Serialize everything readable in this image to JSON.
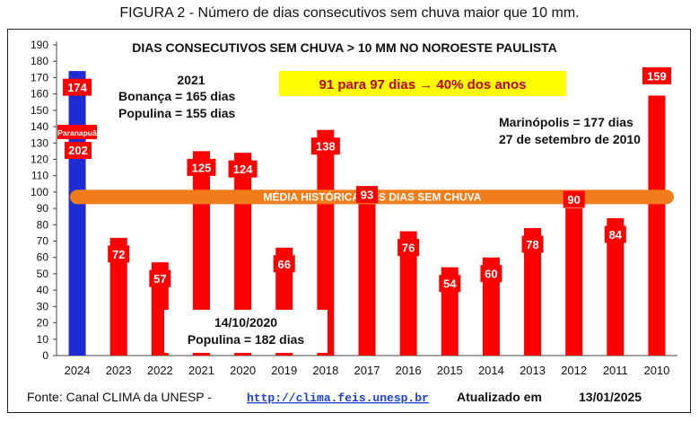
{
  "figure_caption": "FIGURA 2 - Número de dias consecutivos sem chuva maior que 10 mm.",
  "colors": {
    "bar_primary": "#ff0000",
    "bar_highlight": "#1f2bd4",
    "mean_band": "#f07d1a",
    "label_box": "#ff0000",
    "callout_bg": "#ffff00",
    "link": "#1a3fd1"
  },
  "chart_data": {
    "type": "bar",
    "title": "DIAS CONSECUTIVOS SEM CHUVA  > 10 MM NO NOROESTE PAULISTA",
    "categories": [
      "2024",
      "2023",
      "2022",
      "2021",
      "2020",
      "2019",
      "2018",
      "2017",
      "2016",
      "2015",
      "2014",
      "2013",
      "2012",
      "2011",
      "2010"
    ],
    "values": [
      174,
      72,
      57,
      125,
      124,
      66,
      138,
      93,
      76,
      54,
      60,
      78,
      90,
      84,
      159
    ],
    "data_labels": [
      "174",
      "72",
      "57",
      "125",
      "124",
      "66",
      "138",
      "93",
      "76",
      "54",
      "60",
      "78",
      "90",
      "84",
      "159"
    ],
    "highlight_category": "2024",
    "ylim": [
      0,
      190
    ],
    "yticks": [
      0,
      10,
      20,
      30,
      40,
      50,
      60,
      70,
      80,
      90,
      100,
      110,
      120,
      130,
      140,
      150,
      160,
      170,
      180,
      190
    ],
    "grid": false,
    "mean_band": {
      "value": 97,
      "label": "MÉDIA HISTÓRICA DOS DIAS SEM CHUVA"
    },
    "annotations": {
      "paranapua": {
        "label": "Paranapuã",
        "value": "202"
      },
      "info_2021": {
        "title": "2021",
        "lines": [
          "Bonança = 165 dias",
          "Populina = 155 dias"
        ]
      },
      "callout": "91 para 97 dias → 40% dos anos",
      "marinopolis": {
        "lines": [
          "Marinópolis = 177 dias",
          "27 de setembro de 2010"
        ]
      },
      "info_2020": {
        "lines": [
          "14/10/2020",
          "Populina = 182 dias"
        ]
      }
    },
    "footer": {
      "source": "Fonte: Canal CLIMA da UNESP -",
      "link": "http://clima.feis.unesp.br",
      "updated_label": "Atualizado em",
      "updated_date": "13/01/2025"
    }
  }
}
